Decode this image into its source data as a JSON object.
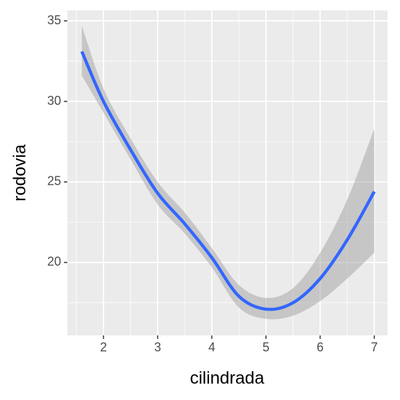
{
  "chart_data": {
    "type": "line",
    "x_label": "cilindrada",
    "y_label": "rodovia",
    "x": [
      1.6,
      2.0,
      2.5,
      3.0,
      3.5,
      4.0,
      4.5,
      5.0,
      5.5,
      6.0,
      6.5,
      7.0
    ],
    "series": [
      {
        "color": "#3366ff",
        "band_color": "#999999",
        "values": [
          33.1,
          30.0,
          27.0,
          24.3,
          22.4,
          20.3,
          17.9,
          17.1,
          17.5,
          19.0,
          21.4,
          24.4
        ],
        "lower": [
          31.6,
          29.3,
          26.4,
          23.6,
          21.8,
          19.7,
          17.2,
          16.5,
          16.7,
          17.6,
          19.0,
          20.6
        ],
        "upper": [
          34.7,
          30.8,
          27.7,
          25.0,
          23.1,
          20.9,
          18.6,
          17.8,
          18.4,
          20.6,
          23.9,
          28.3
        ]
      }
    ],
    "xlim": [
      1.333,
      7.244
    ],
    "ylim": [
      15.47,
      35.65
    ],
    "xticks": [
      2,
      3,
      4,
      5,
      6,
      7
    ],
    "yticks": [
      20,
      25,
      30,
      35
    ],
    "x_minor_grid": [
      1.5,
      2.5,
      3.5,
      4.5,
      5.5,
      6.5
    ],
    "y_minor_grid": [
      17.5,
      22.5,
      27.5,
      32.5
    ],
    "grid": true,
    "panel_color": "#ebebeb"
  }
}
